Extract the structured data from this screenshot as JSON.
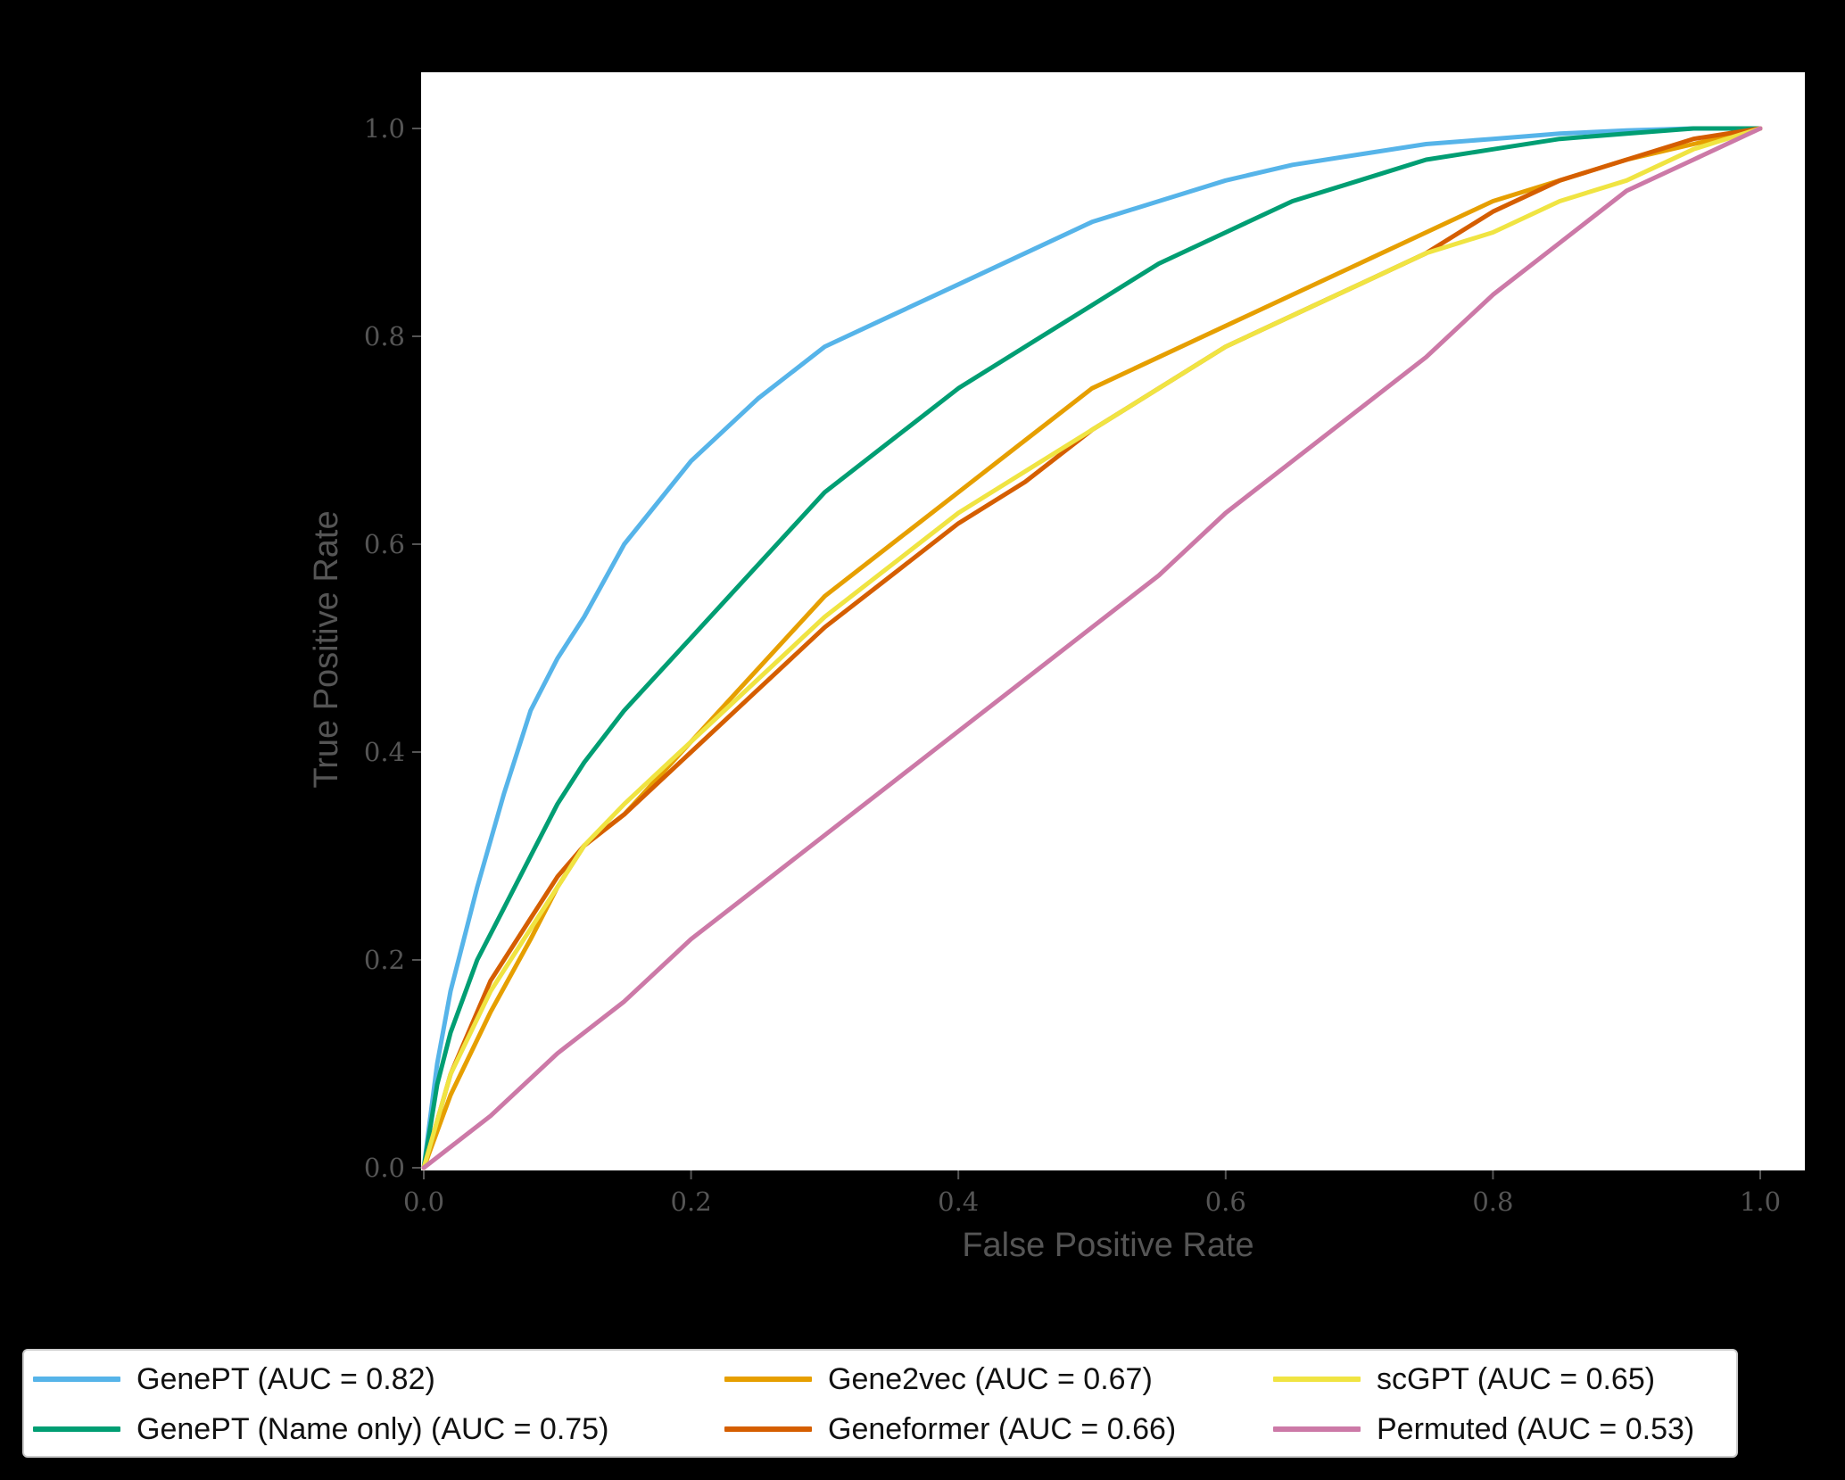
{
  "chart_data": {
    "type": "line",
    "xlabel": "False Positive Rate",
    "ylabel": "True Positive Rate",
    "xlim": [
      0.0,
      1.0
    ],
    "ylim": [
      0.0,
      1.0
    ],
    "xticks": [
      "0.0",
      "0.2",
      "0.4",
      "0.6",
      "0.8",
      "1.0"
    ],
    "yticks": [
      "0.0",
      "0.2",
      "0.4",
      "0.6",
      "0.8",
      "1.0"
    ],
    "grid": false,
    "legend_position": "bottom",
    "series": [
      {
        "name": "GenePT (AUC = 0.82)",
        "color": "#56B4E9",
        "x": [
          0,
          0.01,
          0.02,
          0.04,
          0.06,
          0.08,
          0.1,
          0.12,
          0.15,
          0.2,
          0.25,
          0.3,
          0.35,
          0.4,
          0.45,
          0.5,
          0.55,
          0.6,
          0.65,
          0.7,
          0.75,
          0.8,
          0.85,
          0.9,
          0.95,
          1.0
        ],
        "y": [
          0,
          0.1,
          0.17,
          0.27,
          0.36,
          0.44,
          0.49,
          0.53,
          0.6,
          0.68,
          0.74,
          0.79,
          0.82,
          0.85,
          0.88,
          0.91,
          0.93,
          0.95,
          0.965,
          0.975,
          0.985,
          0.99,
          0.995,
          0.998,
          1.0,
          1.0
        ]
      },
      {
        "name": "GenePT (Name only) (AUC = 0.75)",
        "color": "#009E73",
        "x": [
          0,
          0.01,
          0.02,
          0.04,
          0.06,
          0.08,
          0.1,
          0.12,
          0.15,
          0.2,
          0.25,
          0.3,
          0.35,
          0.4,
          0.45,
          0.5,
          0.55,
          0.6,
          0.65,
          0.7,
          0.75,
          0.8,
          0.85,
          0.9,
          0.95,
          1.0
        ],
        "y": [
          0,
          0.08,
          0.13,
          0.2,
          0.25,
          0.3,
          0.35,
          0.39,
          0.44,
          0.51,
          0.58,
          0.65,
          0.7,
          0.75,
          0.79,
          0.83,
          0.87,
          0.9,
          0.93,
          0.95,
          0.97,
          0.98,
          0.99,
          0.995,
          1.0,
          1.0
        ]
      },
      {
        "name": "Gene2vec (AUC = 0.67)",
        "color": "#E69F00",
        "x": [
          0,
          0.02,
          0.05,
          0.08,
          0.1,
          0.12,
          0.15,
          0.2,
          0.25,
          0.3,
          0.35,
          0.4,
          0.45,
          0.5,
          0.55,
          0.6,
          0.65,
          0.7,
          0.75,
          0.8,
          0.85,
          0.9,
          0.95,
          1.0
        ],
        "y": [
          0,
          0.07,
          0.15,
          0.22,
          0.27,
          0.31,
          0.34,
          0.41,
          0.48,
          0.55,
          0.6,
          0.65,
          0.7,
          0.75,
          0.78,
          0.81,
          0.84,
          0.87,
          0.9,
          0.93,
          0.95,
          0.97,
          0.985,
          1.0
        ]
      },
      {
        "name": "Geneformer (AUC = 0.66)",
        "color": "#D55E00",
        "x": [
          0,
          0.02,
          0.05,
          0.08,
          0.1,
          0.12,
          0.15,
          0.2,
          0.25,
          0.3,
          0.35,
          0.4,
          0.45,
          0.5,
          0.55,
          0.6,
          0.65,
          0.7,
          0.75,
          0.8,
          0.85,
          0.9,
          0.95,
          1.0
        ],
        "y": [
          0,
          0.09,
          0.18,
          0.24,
          0.28,
          0.31,
          0.34,
          0.4,
          0.46,
          0.52,
          0.57,
          0.62,
          0.66,
          0.71,
          0.75,
          0.79,
          0.82,
          0.85,
          0.88,
          0.92,
          0.95,
          0.97,
          0.99,
          1.0
        ]
      },
      {
        "name": "scGPT (AUC = 0.65)",
        "color": "#F0E442",
        "x": [
          0,
          0.02,
          0.05,
          0.08,
          0.1,
          0.12,
          0.15,
          0.2,
          0.25,
          0.3,
          0.35,
          0.4,
          0.45,
          0.5,
          0.55,
          0.6,
          0.65,
          0.7,
          0.75,
          0.8,
          0.85,
          0.9,
          0.95,
          1.0
        ],
        "y": [
          0,
          0.09,
          0.17,
          0.23,
          0.27,
          0.31,
          0.35,
          0.41,
          0.47,
          0.53,
          0.58,
          0.63,
          0.67,
          0.71,
          0.75,
          0.79,
          0.82,
          0.85,
          0.88,
          0.9,
          0.93,
          0.95,
          0.98,
          1.0
        ]
      },
      {
        "name": "Permuted (AUC = 0.53)",
        "color": "#CC79A7",
        "x": [
          0,
          0.05,
          0.1,
          0.15,
          0.2,
          0.25,
          0.3,
          0.35,
          0.4,
          0.45,
          0.5,
          0.55,
          0.6,
          0.65,
          0.7,
          0.75,
          0.8,
          0.85,
          0.9,
          0.95,
          1.0
        ],
        "y": [
          0,
          0.05,
          0.11,
          0.16,
          0.22,
          0.27,
          0.32,
          0.37,
          0.42,
          0.47,
          0.52,
          0.57,
          0.63,
          0.68,
          0.73,
          0.78,
          0.84,
          0.89,
          0.94,
          0.97,
          1.0
        ]
      }
    ]
  },
  "legend": {
    "items": [
      {
        "label": "GenePT (AUC = 0.82)",
        "color": "#56B4E9"
      },
      {
        "label": "GenePT (Name only) (AUC = 0.75)",
        "color": "#009E73"
      },
      {
        "label": "Gene2vec (AUC = 0.67)",
        "color": "#E69F00"
      },
      {
        "label": "Geneformer (AUC = 0.66)",
        "color": "#D55E00"
      },
      {
        "label": "scGPT (AUC = 0.65)",
        "color": "#F0E442"
      },
      {
        "label": "Permuted (AUC = 0.53)",
        "color": "#CC79A7"
      }
    ]
  }
}
